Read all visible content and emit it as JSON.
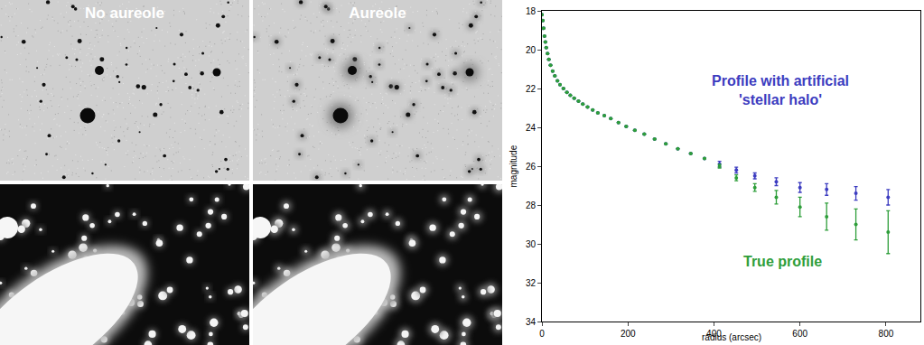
{
  "panels": {
    "labels": [
      "No aureole",
      "Aureole"
    ]
  },
  "chart_data": {
    "type": "scatter",
    "x_label": "radius (arcsec)",
    "y_label": "magnitude",
    "xlim": [
      0,
      880
    ],
    "ylim": [
      34,
      18
    ],
    "xticks": [
      0,
      200,
      400,
      600,
      800
    ],
    "yticks": [
      18,
      20,
      22,
      24,
      26,
      28,
      30,
      32,
      34
    ],
    "grid": false,
    "x": [
      0,
      2,
      4,
      6,
      8,
      10,
      13,
      16,
      20,
      25,
      30,
      36,
      42,
      50,
      58,
      66,
      75,
      85,
      95,
      106,
      118,
      130,
      145,
      160,
      178,
      196,
      216,
      238,
      262,
      288,
      316,
      346,
      378,
      413,
      452,
      495,
      545,
      600,
      662,
      730,
      805
    ],
    "series": [
      {
        "name": "Profile with artificial\n'stellar halo'",
        "color": "#3c3cc0",
        "marker": "circle",
        "values": [
          18.2,
          18.5,
          18.9,
          19.3,
          19.6,
          19.9,
          20.2,
          20.5,
          20.8,
          21.1,
          21.35,
          21.6,
          21.8,
          22.0,
          22.2,
          22.35,
          22.5,
          22.65,
          22.8,
          22.95,
          23.1,
          23.25,
          23.4,
          23.55,
          23.75,
          23.95,
          24.15,
          24.35,
          24.6,
          24.85,
          25.1,
          25.35,
          25.6,
          25.9,
          26.2,
          26.5,
          26.8,
          27.1,
          27.2,
          27.4,
          27.6
        ],
        "errors": [
          0,
          0,
          0,
          0,
          0,
          0,
          0,
          0,
          0,
          0,
          0,
          0,
          0,
          0,
          0,
          0,
          0,
          0,
          0,
          0,
          0,
          0,
          0,
          0,
          0,
          0,
          0,
          0,
          0,
          0,
          0,
          0,
          0,
          0.15,
          0.15,
          0.15,
          0.2,
          0.25,
          0.3,
          0.35,
          0.4
        ]
      },
      {
        "name": "True profile",
        "color": "#2e9e3a",
        "marker": "circle",
        "values": [
          18.2,
          18.5,
          18.9,
          19.3,
          19.6,
          19.9,
          20.2,
          20.5,
          20.8,
          21.1,
          21.35,
          21.6,
          21.8,
          22.0,
          22.2,
          22.35,
          22.5,
          22.65,
          22.8,
          22.95,
          23.1,
          23.25,
          23.4,
          23.55,
          23.75,
          23.95,
          24.15,
          24.35,
          24.6,
          24.85,
          25.1,
          25.35,
          25.6,
          26.0,
          26.6,
          27.1,
          27.6,
          28.1,
          28.6,
          29.0,
          29.4
        ],
        "errors": [
          0,
          0,
          0,
          0,
          0,
          0,
          0,
          0,
          0,
          0,
          0,
          0,
          0,
          0,
          0,
          0,
          0,
          0,
          0,
          0,
          0,
          0,
          0,
          0,
          0,
          0,
          0,
          0,
          0,
          0,
          0,
          0,
          0,
          0.1,
          0.15,
          0.2,
          0.35,
          0.5,
          0.7,
          0.8,
          1.1
        ]
      }
    ]
  }
}
